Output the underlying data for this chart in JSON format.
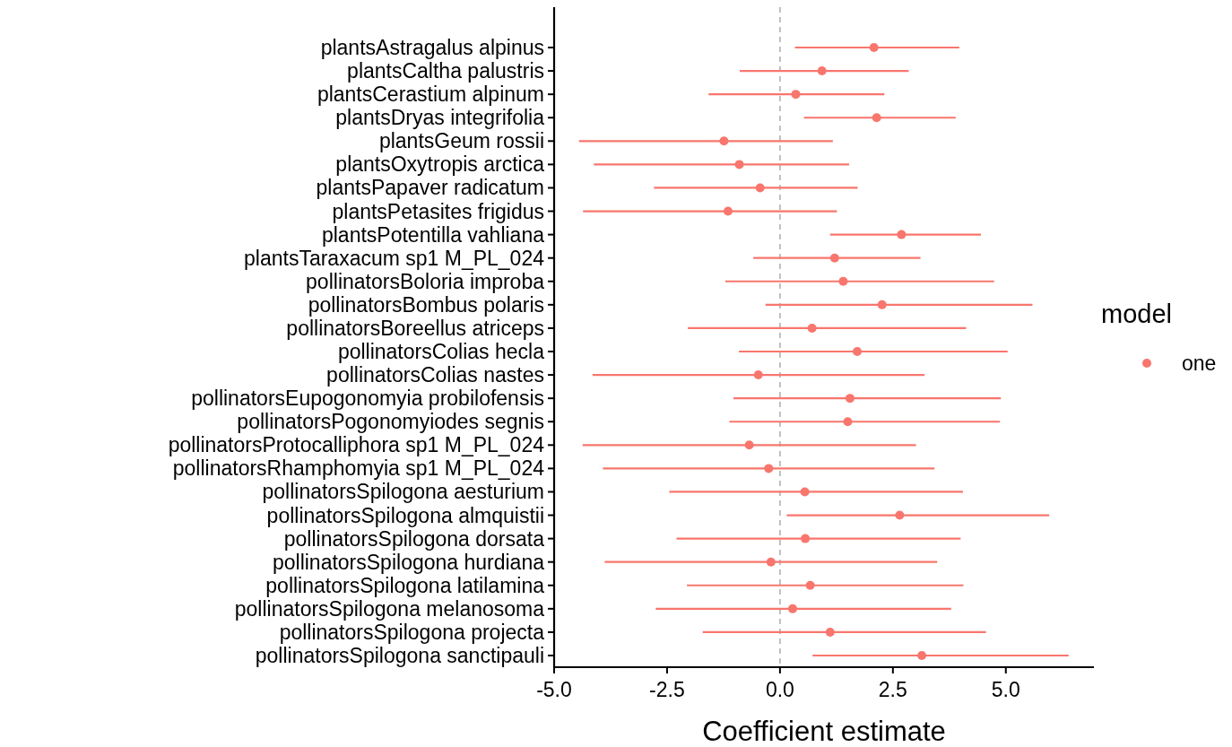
{
  "chart_data": {
    "type": "scatter",
    "orientation": "horizontal",
    "xlabel": "Coefficient estimate",
    "legend_title": "model",
    "legend": "right",
    "marker": "circle",
    "grid": false,
    "categories": [
      "plantsAstragalus alpinus",
      "plantsCaltha palustris",
      "plantsCerastium alpinum",
      "plantsDryas integrifolia",
      "plantsGeum rossii",
      "plantsOxytropis arctica",
      "plantsPapaver radicatum",
      "plantsPetasites frigidus",
      "plantsPotentilla vahliana",
      "plantsTaraxacum sp1 M_PL_024",
      "pollinatorsBoloria improba",
      "pollinatorsBombus polaris",
      "pollinatorsBoreellus atriceps",
      "pollinatorsColias hecla",
      "pollinatorsColias nastes",
      "pollinatorsEupogonomyia probilofensis",
      "pollinatorsPogonomyiodes segnis",
      "pollinatorsProtocalliphora sp1 M_PL_024",
      "pollinatorsRhamphomyia sp1 M_PL_024",
      "pollinatorsSpilogona aesturium",
      "pollinatorsSpilogona almquistii",
      "pollinatorsSpilogona dorsata",
      "pollinatorsSpilogona hurdiana",
      "pollinatorsSpilogona latilamina",
      "pollinatorsSpilogona melanosoma",
      "pollinatorsSpilogona projecta",
      "pollinatorsSpilogona sanctipauli"
    ],
    "xlim": [
      -5,
      6.95
    ],
    "xticks": [
      {
        "value": -5,
        "label": "-5.0"
      },
      -2.5,
      {
        "value": 0,
        "label": "0.0"
      },
      2.5,
      {
        "value": 5,
        "label": "5.0"
      }
    ],
    "ref_lines": [
      {
        "axis": "x",
        "value": 0,
        "color": "#bebebe",
        "line_style": "dashed"
      }
    ],
    "series": [
      {
        "name": "one",
        "color": "#f8766d",
        "values": [
          2.08,
          0.93,
          0.35,
          2.14,
          -1.24,
          -0.9,
          -0.44,
          -1.15,
          2.69,
          1.21,
          1.4,
          2.26,
          0.71,
          1.71,
          -0.48,
          1.55,
          1.5,
          -0.68,
          -0.25,
          0.55,
          2.65,
          0.56,
          -0.2,
          0.67,
          0.28,
          1.11,
          3.14
        ],
        "errors": [
          [
            0.33,
            3.97
          ],
          [
            -0.89,
            2.85
          ],
          [
            -1.58,
            2.31
          ],
          [
            0.53,
            3.89
          ],
          [
            -4.45,
            1.17
          ],
          [
            -4.12,
            1.53
          ],
          [
            -2.79,
            1.72
          ],
          [
            -4.36,
            1.26
          ],
          [
            1.11,
            4.45
          ],
          [
            -0.59,
            3.11
          ],
          [
            -1.21,
            4.74
          ],
          [
            -0.32,
            5.59
          ],
          [
            -2.04,
            4.12
          ],
          [
            -0.91,
            5.04
          ],
          [
            -4.15,
            3.2
          ],
          [
            -1.03,
            4.89
          ],
          [
            -1.12,
            4.87
          ],
          [
            -4.37,
            3.01
          ],
          [
            -3.92,
            3.42
          ],
          [
            -2.45,
            4.05
          ],
          [
            0.15,
            5.96
          ],
          [
            -2.29,
            4.0
          ],
          [
            -3.88,
            3.48
          ],
          [
            -2.06,
            4.06
          ],
          [
            -2.75,
            3.79
          ],
          [
            -1.71,
            4.56
          ],
          [
            0.72,
            6.39
          ]
        ]
      }
    ]
  }
}
